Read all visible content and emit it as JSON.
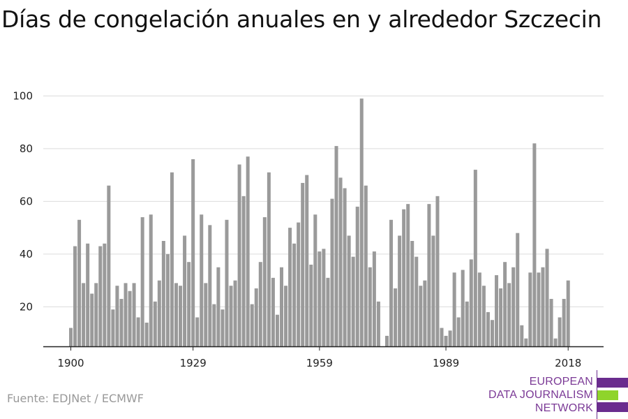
{
  "chart_data": {
    "type": "bar",
    "title": "Días de congelación anuales en y alrededor Szczecin",
    "xlabel": "",
    "ylabel": "",
    "x_ticks": [
      1900,
      1929,
      1959,
      1989,
      2018
    ],
    "y_ticks": [
      20,
      40,
      60,
      80,
      100
    ],
    "ylim": [
      5,
      101
    ],
    "xlim": [
      1899,
      2024
    ],
    "grid": true,
    "color": "#9a9a9a",
    "years": [
      1900,
      1901,
      1902,
      1903,
      1904,
      1905,
      1906,
      1907,
      1908,
      1909,
      1910,
      1911,
      1912,
      1913,
      1914,
      1915,
      1916,
      1917,
      1918,
      1919,
      1920,
      1921,
      1922,
      1923,
      1924,
      1925,
      1926,
      1927,
      1928,
      1929,
      1930,
      1931,
      1932,
      1933,
      1934,
      1935,
      1936,
      1937,
      1938,
      1939,
      1940,
      1941,
      1942,
      1943,
      1944,
      1945,
      1946,
      1947,
      1948,
      1949,
      1950,
      1951,
      1952,
      1953,
      1954,
      1955,
      1956,
      1957,
      1958,
      1959,
      1960,
      1961,
      1962,
      1963,
      1964,
      1965,
      1966,
      1967,
      1968,
      1969,
      1970,
      1971,
      1972,
      1973,
      1974,
      1975,
      1976,
      1977,
      1978,
      1979,
      1980,
      1981,
      1982,
      1983,
      1984,
      1985,
      1986,
      1987,
      1988,
      1989,
      1990,
      1991,
      1992,
      1993,
      1994,
      1995,
      1996,
      1997,
      1998,
      1999,
      2000,
      2001,
      2002,
      2003,
      2004,
      2005,
      2006,
      2007,
      2008,
      2009,
      2010,
      2011,
      2012,
      2013,
      2014,
      2015,
      2016,
      2017,
      2018
    ],
    "values": [
      12,
      43,
      53,
      29,
      44,
      25,
      29,
      43,
      44,
      66,
      19,
      28,
      23,
      29,
      26,
      29,
      16,
      54,
      14,
      55,
      22,
      30,
      45,
      40,
      71,
      29,
      28,
      47,
      37,
      76,
      16,
      55,
      29,
      51,
      21,
      35,
      19,
      53,
      28,
      30,
      74,
      62,
      77,
      21,
      27,
      37,
      54,
      71,
      31,
      17,
      35,
      28,
      50,
      44,
      52,
      67,
      70,
      36,
      55,
      41,
      42,
      31,
      61,
      81,
      69,
      65,
      47,
      39,
      58,
      99,
      66,
      35,
      41,
      22,
      5,
      9,
      53,
      27,
      47,
      57,
      59,
      45,
      39,
      28,
      30,
      59,
      47,
      62,
      12,
      9,
      11,
      33,
      16,
      34,
      22,
      38,
      72,
      33,
      28,
      18,
      15,
      32,
      27,
      37,
      29,
      35,
      48,
      13,
      8,
      33,
      82,
      33,
      35,
      42,
      23,
      8,
      16,
      23,
      30
    ]
  },
  "source": "Fuente: EDJNet / ECMWF",
  "logo": {
    "line1": "EUROPEAN",
    "line2": "DATA JOURNALISM",
    "line3": "NETWORK",
    "colors": {
      "purple": "#6a2c8e",
      "green": "#8fd42b"
    }
  }
}
